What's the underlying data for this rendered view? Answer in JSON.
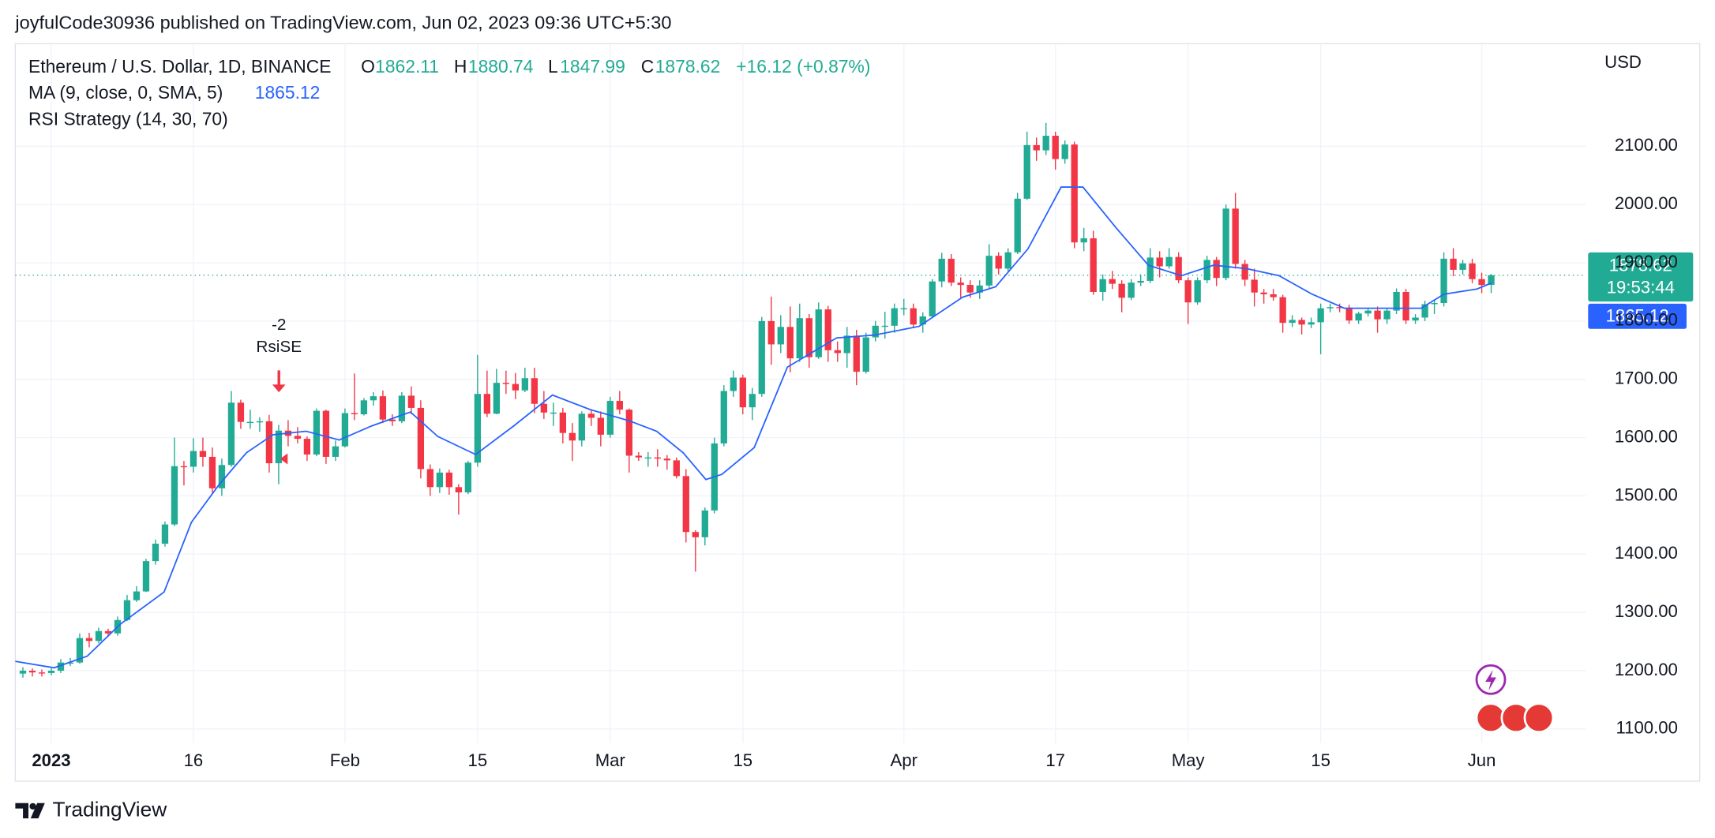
{
  "header": {
    "publisher": "joyfulCode30936 published on TradingView.com, Jun 02, 2023 09:36 UTC+5:30"
  },
  "footer": {
    "brand": "TradingView"
  },
  "chart_data": {
    "type": "candlestick",
    "title": "Ethereum / U.S. Dollar, 1D, BINANCE",
    "ohlc": [
      {
        "label": "O",
        "value": 1862.11
      },
      {
        "label": "H",
        "value": 1880.74
      },
      {
        "label": "L",
        "value": 1847.99
      },
      {
        "label": "C",
        "value": 1878.62
      }
    ],
    "change": "+16.12 (+0.87%)",
    "currency": "USD",
    "countdown": "19:53:44",
    "indicator": "RSI Strategy (14, 30, 70)",
    "signal": {
      "value": "-2",
      "label": "RsiSE"
    },
    "up_color": "#22ab94",
    "down_color": "#f23645",
    "open": [
      1195,
      1200,
      1197,
      1196,
      1200,
      1214,
      1214,
      1256,
      1251,
      1268,
      1264,
      1287,
      1321,
      1336,
      1388,
      1418,
      1451,
      1551,
      1550,
      1577,
      1567,
      1513,
      1553,
      1660,
      1627,
      1627,
      1628,
      1556,
      1612,
      1603,
      1598,
      1571,
      1646,
      1567,
      1585,
      1642,
      1640,
      1664,
      1671,
      1631,
      1628,
      1672,
      1651,
      1546,
      1515,
      1540,
      1515,
      1506,
      1557,
      1675,
      1641,
      1694,
      1692,
      1681,
      1702,
      1658,
      1643,
      1643,
      1608,
      1595,
      1641,
      1634,
      1605,
      1663,
      1648,
      1569,
      1566,
      1566,
      1564,
      1561,
      1534,
      1438,
      1429,
      1475,
      1590,
      1680,
      1703,
      1652,
      1675,
      1800,
      1760,
      1790,
      1736,
      1805,
      1738,
      1820,
      1750,
      1745,
      1775,
      1713,
      1772,
      1792,
      1792,
      1822,
      1822,
      1794,
      1808,
      1868,
      1907,
      1866,
      1862,
      1849,
      1861,
      1912,
      1890,
      1918,
      2010,
      2102,
      2093,
      2118,
      2078,
      2103,
      1935,
      1942,
      1850,
      1872,
      1864,
      1840,
      1866,
      1869,
      1909,
      1894,
      1910,
      1870,
      1832,
      1870,
      1905,
      1874,
      1993,
      1898,
      1871,
      1849,
      1846,
      1841,
      1797,
      1802,
      1794,
      1798,
      1822,
      1824,
      1823,
      1801,
      1813,
      1818,
      1803,
      1818,
      1850,
      1801,
      1806,
      1829,
      1831,
      1907,
      1888,
      1899,
      1872,
      1862.11
    ],
    "high": [
      1206,
      1204,
      1202,
      1204,
      1220,
      1222,
      1264,
      1265,
      1274,
      1272,
      1293,
      1330,
      1345,
      1392,
      1425,
      1456,
      1600,
      1560,
      1599,
      1600,
      1583,
      1564,
      1680,
      1665,
      1648,
      1635,
      1639,
      1622,
      1630,
      1618,
      1602,
      1650,
      1648,
      1595,
      1650,
      1710,
      1668,
      1678,
      1681,
      1640,
      1678,
      1688,
      1664,
      1554,
      1547,
      1545,
      1520,
      1560,
      1742,
      1715,
      1718,
      1715,
      1711,
      1720,
      1720,
      1680,
      1660,
      1651,
      1625,
      1645,
      1647,
      1645,
      1670,
      1680,
      1650,
      1575,
      1575,
      1580,
      1570,
      1566,
      1546,
      1441,
      1480,
      1600,
      1690,
      1715,
      1708,
      1685,
      1807,
      1842,
      1810,
      1825,
      1830,
      1812,
      1832,
      1826,
      1765,
      1790,
      1785,
      1780,
      1800,
      1816,
      1830,
      1838,
      1830,
      1815,
      1872,
      1917,
      1915,
      1875,
      1870,
      1870,
      1932,
      1918,
      1925,
      2020,
      2125,
      2115,
      2140,
      2125,
      2110,
      2108,
      1960,
      1955,
      1880,
      1886,
      1870,
      1872,
      1880,
      1925,
      1920,
      1925,
      1918,
      1875,
      1875,
      1912,
      1910,
      2000,
      2020,
      1905,
      1890,
      1855,
      1855,
      1845,
      1810,
      1806,
      1806,
      1830,
      1830,
      1830,
      1828,
      1816,
      1823,
      1825,
      1822,
      1856,
      1855,
      1812,
      1835,
      1837,
      1918,
      1925,
      1905,
      1907,
      1883,
      1880.74
    ],
    "low": [
      1188,
      1190,
      1190,
      1192,
      1196,
      1208,
      1212,
      1240,
      1247,
      1258,
      1260,
      1285,
      1318,
      1335,
      1382,
      1413,
      1448,
      1518,
      1540,
      1550,
      1505,
      1500,
      1550,
      1615,
      1615,
      1610,
      1540,
      1520,
      1585,
      1590,
      1560,
      1568,
      1555,
      1560,
      1583,
      1630,
      1638,
      1655,
      1625,
      1620,
      1625,
      1640,
      1530,
      1500,
      1505,
      1502,
      1468,
      1503,
      1550,
      1635,
      1640,
      1675,
      1666,
      1678,
      1642,
      1632,
      1620,
      1590,
      1560,
      1585,
      1620,
      1585,
      1600,
      1640,
      1540,
      1560,
      1550,
      1550,
      1545,
      1530,
      1420,
      1370,
      1415,
      1470,
      1585,
      1670,
      1640,
      1630,
      1670,
      1725,
      1745,
      1712,
      1730,
      1720,
      1735,
      1730,
      1730,
      1720,
      1690,
      1710,
      1765,
      1770,
      1780,
      1810,
      1790,
      1780,
      1805,
      1858,
      1860,
      1840,
      1840,
      1838,
      1856,
      1880,
      1885,
      1915,
      2008,
      2075,
      2085,
      2060,
      2070,
      1925,
      1920,
      1845,
      1835,
      1855,
      1815,
      1836,
      1860,
      1865,
      1875,
      1890,
      1865,
      1795,
      1828,
      1865,
      1860,
      1870,
      1890,
      1860,
      1825,
      1830,
      1835,
      1780,
      1790,
      1777,
      1788,
      1743,
      1815,
      1815,
      1795,
      1795,
      1808,
      1780,
      1795,
      1812,
      1795,
      1795,
      1800,
      1812,
      1825,
      1877,
      1880,
      1865,
      1848,
      1847.99
    ],
    "close": [
      1200,
      1197,
      1196,
      1200,
      1214,
      1214,
      1256,
      1251,
      1268,
      1264,
      1287,
      1321,
      1336,
      1388,
      1418,
      1451,
      1551,
      1550,
      1577,
      1567,
      1513,
      1553,
      1660,
      1627,
      1627,
      1628,
      1556,
      1612,
      1603,
      1598,
      1571,
      1646,
      1567,
      1585,
      1642,
      1640,
      1664,
      1671,
      1631,
      1628,
      1672,
      1651,
      1546,
      1515,
      1540,
      1515,
      1506,
      1557,
      1675,
      1641,
      1694,
      1692,
      1681,
      1702,
      1658,
      1643,
      1643,
      1608,
      1595,
      1641,
      1634,
      1605,
      1663,
      1648,
      1569,
      1566,
      1566,
      1564,
      1561,
      1534,
      1438,
      1429,
      1475,
      1590,
      1680,
      1703,
      1652,
      1675,
      1800,
      1760,
      1790,
      1736,
      1805,
      1738,
      1820,
      1750,
      1745,
      1775,
      1713,
      1772,
      1792,
      1792,
      1822,
      1822,
      1794,
      1808,
      1868,
      1907,
      1866,
      1862,
      1849,
      1861,
      1912,
      1890,
      1918,
      2010,
      2102,
      2093,
      2118,
      2078,
      2103,
      1935,
      1942,
      1850,
      1872,
      1864,
      1840,
      1866,
      1869,
      1909,
      1894,
      1910,
      1870,
      1832,
      1870,
      1905,
      1874,
      1993,
      1898,
      1871,
      1849,
      1846,
      1841,
      1797,
      1802,
      1794,
      1798,
      1822,
      1824,
      1823,
      1801,
      1813,
      1818,
      1803,
      1818,
      1850,
      1801,
      1806,
      1829,
      1831,
      1907,
      1888,
      1899,
      1872,
      1862,
      1878.62
    ],
    "ma": {
      "name": "MA (9, close, 0, SMA, 5)",
      "color": "#2962ff",
      "x": [
        -0.8,
        3.3,
        6.8,
        10.3,
        14.9,
        17.8,
        20.7,
        23.6,
        26.4,
        29.9,
        33.4,
        36.8,
        40.9,
        43.8,
        47.8,
        51.8,
        55.9,
        59.9,
        64.0,
        66.9,
        69.7,
        72.1,
        73.8,
        77.2,
        80.7,
        85.9,
        89.9,
        94.6,
        99.2,
        102.7,
        106.1,
        109.6,
        111.9,
        115.4,
        118.8,
        122.3,
        125.7,
        129.2,
        132.6,
        136.1,
        139.5,
        143.0,
        147.6,
        150.0,
        153.5,
        155
      ],
      "values": [
        1216,
        1205,
        1225,
        1280,
        1335,
        1455,
        1519,
        1574,
        1605,
        1611,
        1596,
        1620,
        1644,
        1602,
        1571,
        1620,
        1673,
        1648,
        1629,
        1611,
        1574,
        1528,
        1537,
        1583,
        1721,
        1771,
        1776,
        1791,
        1841,
        1859,
        1924,
        2030,
        2030,
        1960,
        1896,
        1878,
        1896,
        1890,
        1878,
        1846,
        1822,
        1822,
        1822,
        1846,
        1855,
        1865.12
      ]
    },
    "xlim": [
      -0.8,
      165
    ],
    "xticks": [
      {
        "value": 3,
        "label": "2023"
      },
      {
        "value": 18,
        "label": "16"
      },
      {
        "value": 34,
        "label": "Feb"
      },
      {
        "value": 48,
        "label": "15"
      },
      {
        "value": 62,
        "label": "Mar"
      },
      {
        "value": 76,
        "label": "15"
      },
      {
        "value": 93,
        "label": "Apr"
      },
      {
        "value": 109,
        "label": "17"
      },
      {
        "value": 123,
        "label": "May"
      },
      {
        "value": 137,
        "label": "15"
      },
      {
        "value": 154,
        "label": "Jun"
      }
    ],
    "ylim": [
      1076,
      2276
    ],
    "yticks": [
      {
        "value": 1100,
        "label": "1100.00"
      },
      {
        "value": 1200,
        "label": "1200.00"
      },
      {
        "value": 1300,
        "label": "1300.00"
      },
      {
        "value": 1400,
        "label": "1400.00"
      },
      {
        "value": 1500,
        "label": "1500.00"
      },
      {
        "value": 1600,
        "label": "1600.00"
      },
      {
        "value": 1700,
        "label": "1700.00"
      },
      {
        "value": 1800,
        "label": "1800.00"
      },
      {
        "value": 1900,
        "label": "1900.00"
      },
      {
        "value": 2000,
        "label": "2000.00"
      },
      {
        "value": 2100,
        "label": "2100.00"
      }
    ],
    "grid": true
  }
}
